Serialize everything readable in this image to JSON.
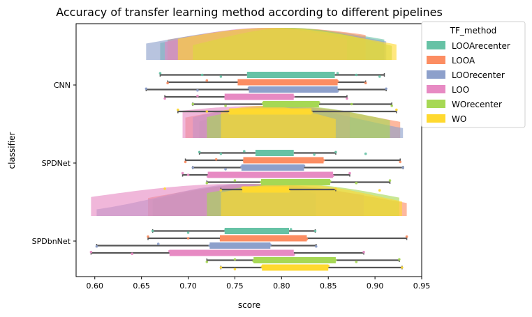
{
  "chart_data": {
    "type": "raincloud",
    "title": "Accuracy of transfer learning method according to different pipelines",
    "xlabel": "score",
    "ylabel": "classifier",
    "xlim": [
      0.58,
      0.95
    ],
    "x_ticks": [
      "0.60",
      "0.65",
      "0.70",
      "0.75",
      "0.80",
      "0.85",
      "0.90",
      "0.95"
    ],
    "categories": [
      "CNN",
      "SPDNet",
      "SPDbnNet"
    ],
    "grid": false,
    "legend": {
      "title": "TF_method",
      "placement": "outside-top-right",
      "entries": [
        "LOOArecenter",
        "LOOA",
        "LOOrecenter",
        "LOO",
        "WOrecenter",
        "WO"
      ]
    },
    "series": [
      {
        "name": "LOOArecenter",
        "color": "#66c2a5",
        "stats": [
          {
            "classifier": "CNN",
            "min": 0.67,
            "q1": 0.763,
            "median": 0.8,
            "q3": 0.857,
            "max": 0.91,
            "points": [
              0.67,
              0.715,
              0.735,
              0.775,
              0.815,
              0.86,
              0.88,
              0.905
            ]
          },
          {
            "classifier": "SPDNet",
            "min": 0.712,
            "q1": 0.772,
            "median": 0.79,
            "q3": 0.813,
            "max": 0.858,
            "points": [
              0.712,
              0.735,
              0.76,
              0.79,
              0.835,
              0.858,
              0.89
            ]
          },
          {
            "classifier": "SPDbnNet",
            "min": 0.662,
            "q1": 0.739,
            "median": 0.77,
            "q3": 0.808,
            "max": 0.836,
            "points": [
              0.662,
              0.7,
              0.74,
              0.78,
              0.81,
              0.836
            ]
          }
        ]
      },
      {
        "name": "LOOA",
        "color": "#fc8d62",
        "stats": [
          {
            "classifier": "CNN",
            "min": 0.678,
            "q1": 0.753,
            "median": 0.8,
            "q3": 0.86,
            "max": 0.89,
            "points": [
              0.678,
              0.72,
              0.755,
              0.8,
              0.86,
              0.89
            ]
          },
          {
            "classifier": "SPDNet",
            "min": 0.697,
            "q1": 0.759,
            "median": 0.8,
            "q3": 0.845,
            "max": 0.927,
            "points": [
              0.697,
              0.73,
              0.76,
              0.8,
              0.845,
              0.927
            ]
          },
          {
            "classifier": "SPDbnNet",
            "min": 0.657,
            "q1": 0.734,
            "median": 0.78,
            "q3": 0.827,
            "max": 0.934,
            "points": [
              0.657,
              0.7,
              0.735,
              0.78,
              0.827,
              0.934
            ]
          }
        ]
      },
      {
        "name": "LOOrecenter",
        "color": "#8da0cb",
        "stats": [
          {
            "classifier": "CNN",
            "min": 0.655,
            "q1": 0.765,
            "median": 0.79,
            "q3": 0.86,
            "max": 0.912,
            "points": [
              0.655,
              0.71,
              0.765,
              0.8,
              0.86,
              0.912
            ]
          },
          {
            "classifier": "SPDNet",
            "min": 0.705,
            "q1": 0.757,
            "median": 0.79,
            "q3": 0.824,
            "max": 0.93,
            "points": [
              0.705,
              0.74,
              0.757,
              0.79,
              0.824,
              0.93
            ]
          },
          {
            "classifier": "SPDbnNet",
            "min": 0.602,
            "q1": 0.723,
            "median": 0.76,
            "q3": 0.788,
            "max": 0.837,
            "points": [
              0.602,
              0.668,
              0.723,
              0.76,
              0.788,
              0.837
            ]
          }
        ]
      },
      {
        "name": "LOO",
        "color": "#e78ac3",
        "stats": [
          {
            "classifier": "CNN",
            "min": 0.675,
            "q1": 0.739,
            "median": 0.78,
            "q3": 0.813,
            "max": 0.87,
            "points": [
              0.675,
              0.71,
              0.74,
              0.78,
              0.813,
              0.87
            ]
          },
          {
            "classifier": "SPDNet",
            "min": 0.694,
            "q1": 0.721,
            "median": 0.78,
            "q3": 0.855,
            "max": 0.873,
            "points": [
              0.694,
              0.7,
              0.721,
              0.78,
              0.855,
              0.873
            ]
          },
          {
            "classifier": "SPDbnNet",
            "min": 0.596,
            "q1": 0.68,
            "median": 0.75,
            "q3": 0.813,
            "max": 0.888,
            "points": [
              0.596,
              0.64,
              0.68,
              0.75,
              0.813,
              0.888
            ]
          }
        ]
      },
      {
        "name": "WOrecenter",
        "color": "#a6d854",
        "stats": [
          {
            "classifier": "CNN",
            "min": 0.705,
            "q1": 0.78,
            "median": 0.81,
            "q3": 0.84,
            "max": 0.918,
            "points": [
              0.705,
              0.74,
              0.78,
              0.81,
              0.84,
              0.875,
              0.918
            ]
          },
          {
            "classifier": "SPDNet",
            "min": 0.72,
            "q1": 0.778,
            "median": 0.81,
            "q3": 0.852,
            "max": 0.916,
            "points": [
              0.72,
              0.75,
              0.778,
              0.81,
              0.852,
              0.88,
              0.916
            ]
          },
          {
            "classifier": "SPDbnNet",
            "min": 0.72,
            "q1": 0.77,
            "median": 0.81,
            "q3": 0.858,
            "max": 0.926,
            "points": [
              0.72,
              0.75,
              0.77,
              0.81,
              0.858,
              0.88,
              0.926
            ]
          }
        ]
      },
      {
        "name": "WO",
        "color": "#ffd92f",
        "stats": [
          {
            "classifier": "CNN",
            "min": 0.689,
            "q1": 0.744,
            "median": 0.79,
            "q3": 0.832,
            "max": 0.923,
            "points": [
              0.689,
              0.72,
              0.744,
              0.79,
              0.832,
              0.923
            ]
          },
          {
            "classifier": "SPDNet",
            "min": 0.735,
            "q1": 0.758,
            "median": 0.78,
            "q3": 0.808,
            "max": 0.858,
            "points": [
              0.675,
              0.735,
              0.758,
              0.78,
              0.808,
              0.858,
              0.905
            ]
          },
          {
            "classifier": "SPDbnNet",
            "min": 0.735,
            "q1": 0.779,
            "median": 0.81,
            "q3": 0.85,
            "max": 0.929,
            "points": [
              0.735,
              0.75,
              0.779,
              0.81,
              0.85,
              0.929
            ]
          }
        ]
      }
    ]
  }
}
